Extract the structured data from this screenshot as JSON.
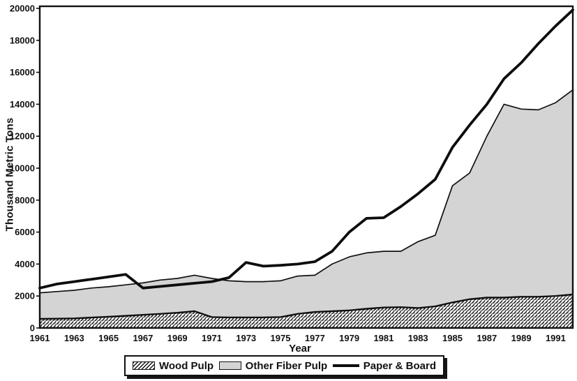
{
  "figure_title": "",
  "chart_data": {
    "type": "area",
    "title": "",
    "xlabel": "Year",
    "ylabel": "Thousand Metric Tons",
    "xlim": [
      1961,
      1992
    ],
    "ylim": [
      0,
      20000
    ],
    "grid": false,
    "legend_position": "bottom-center",
    "x_ticks": [
      1961,
      1963,
      1965,
      1967,
      1969,
      1971,
      1973,
      1975,
      1977,
      1979,
      1981,
      1983,
      1985,
      1987,
      1989,
      1991
    ],
    "y_ticks": [
      0,
      2000,
      4000,
      6000,
      8000,
      10000,
      12000,
      14000,
      16000,
      18000,
      20000
    ],
    "x": [
      1961,
      1962,
      1963,
      1964,
      1965,
      1966,
      1967,
      1968,
      1969,
      1970,
      1971,
      1972,
      1973,
      1974,
      1975,
      1976,
      1977,
      1978,
      1979,
      1980,
      1981,
      1982,
      1983,
      1984,
      1985,
      1986,
      1987,
      1988,
      1989,
      1990,
      1991,
      1992
    ],
    "series": [
      {
        "name": "Wood Pulp",
        "type": "area-stacked",
        "fill": "hatch",
        "values": [
          570,
          580,
          600,
          650,
          700,
          760,
          820,
          880,
          950,
          1050,
          680,
          660,
          660,
          660,
          680,
          880,
          1000,
          1050,
          1100,
          1200,
          1280,
          1300,
          1250,
          1350,
          1600,
          1800,
          1900,
          1900,
          1950,
          1950,
          2000,
          2100
        ]
      },
      {
        "name": "Other Fiber Pulp",
        "type": "area-stacked",
        "fill": "#d4d4d4",
        "values": [
          1630,
          1700,
          1760,
          1850,
          1880,
          1940,
          2000,
          2120,
          2150,
          2250,
          2420,
          2290,
          2240,
          2240,
          2270,
          2370,
          2300,
          2950,
          3350,
          3500,
          3520,
          3500,
          4150,
          4450,
          7300,
          7900,
          10100,
          12100,
          11750,
          11700,
          12100,
          12800
        ]
      },
      {
        "name": "Paper & Board",
        "type": "line",
        "color": "#0d0d0d",
        "values": [
          2500,
          2750,
          2900,
          3050,
          3200,
          3350,
          2500,
          2600,
          2700,
          2800,
          2900,
          3150,
          4100,
          3870,
          3920,
          4000,
          4150,
          4800,
          6000,
          6860,
          6900,
          7600,
          8400,
          9300,
          11300,
          12700,
          14000,
          15600,
          16600,
          17800,
          18900,
          19900
        ]
      }
    ]
  },
  "colors": {
    "ink": "#111111",
    "line": "#0d0d0d",
    "area_gray": "#d4d4d4",
    "background": "#ffffff"
  }
}
